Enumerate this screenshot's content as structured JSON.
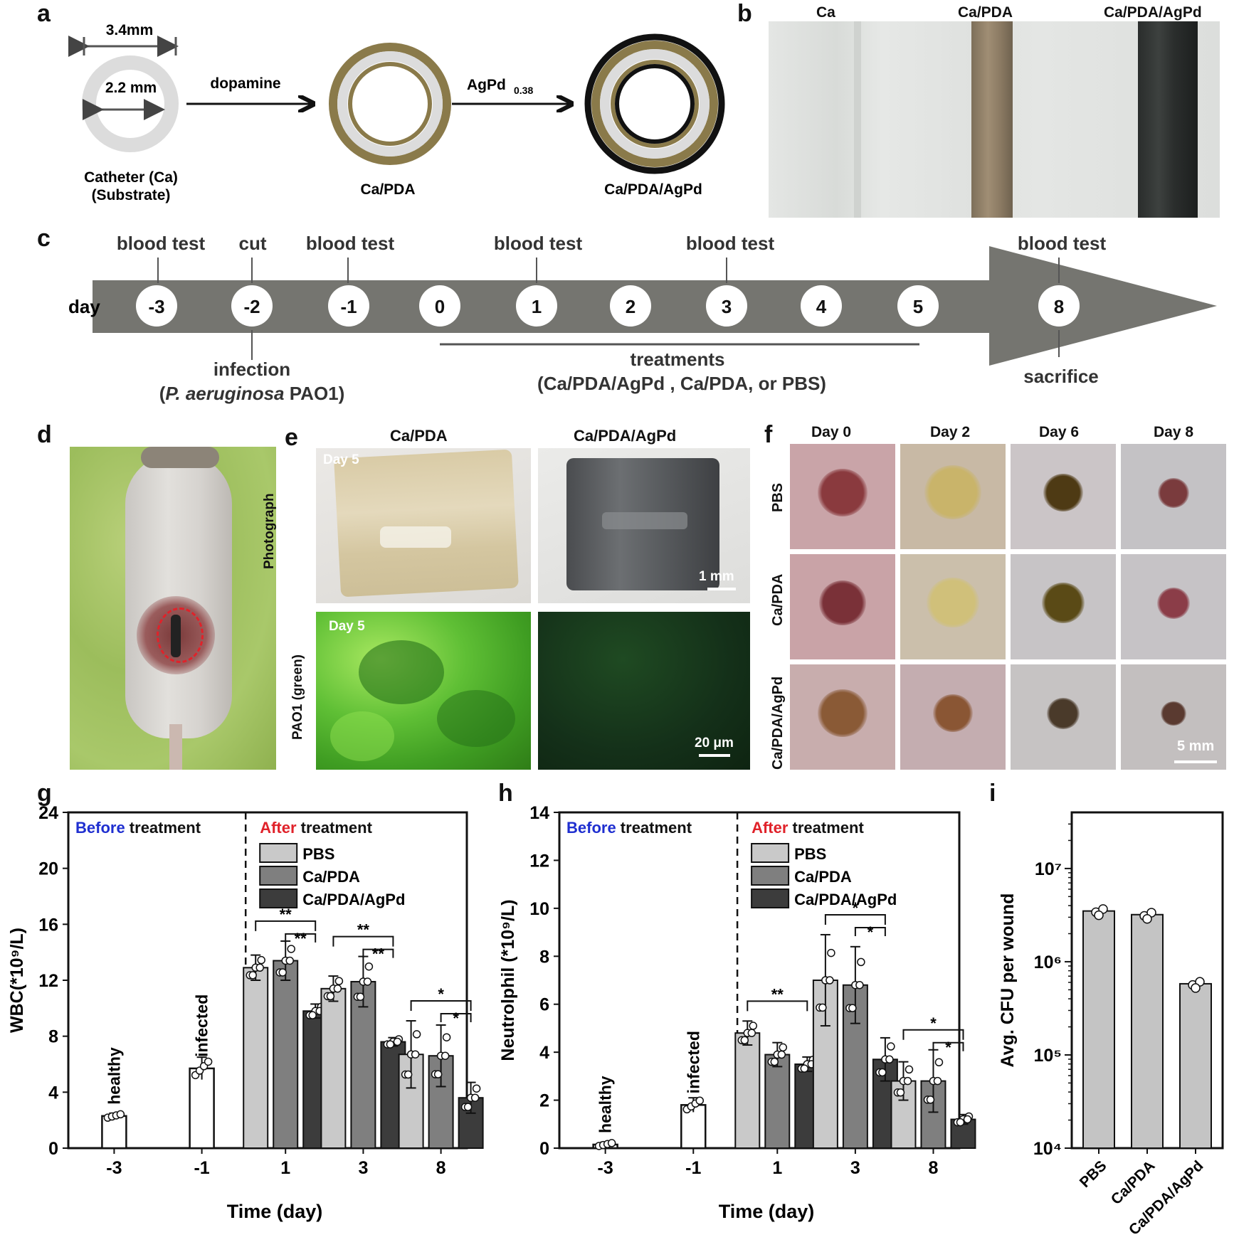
{
  "panels": {
    "a": "a",
    "b": "b",
    "c": "c",
    "d": "d",
    "e": "e",
    "f": "f",
    "g": "g",
    "h": "h",
    "i": "i"
  },
  "panel_a": {
    "outer_dim": "3.4mm",
    "inner_dim": "2.2 mm",
    "step1": "dopamine",
    "step2": "AgPd",
    "step2_sub": "0.38",
    "label_ca_1": "Catheter (Ca)",
    "label_ca_2": "(Substrate)",
    "label_cpda": "Ca/PDA",
    "label_cagpd": "Ca/PDA/AgPd",
    "colors": {
      "substrate": "#d9d9d9",
      "pda": "#8a7a4a",
      "agpd": "#111111"
    }
  },
  "panel_b": {
    "labels": [
      "Ca",
      "Ca/PDA",
      "Ca/PDA/AgPd"
    ]
  },
  "panel_c": {
    "day_label": "day",
    "days": [
      "-3",
      "-2",
      "-1",
      "0",
      "1",
      "2",
      "3",
      "4",
      "5",
      "8"
    ],
    "top_labels": [
      "blood test",
      "cut",
      "blood test",
      "blood test",
      "blood test",
      "blood test"
    ],
    "infection_1": "infection",
    "infection_2a": "(",
    "infection_2b": "P. aeruginosa",
    "infection_2c": " PAO1)",
    "treatments_1": "treatments",
    "treatments_2": "(Ca/PDA/AgPd , Ca/PDA, or PBS)",
    "sacrifice": "sacrifice"
  },
  "panel_e": {
    "col1": "Ca/PDA",
    "col2": "Ca/PDA/AgPd",
    "row1": "Photograph",
    "row2": "PAO1 (green)",
    "day_tag": "Day 5",
    "scale1": "1 mm",
    "scale2": "20 μm"
  },
  "panel_f": {
    "cols": [
      "Day 0",
      "Day 2",
      "Day 6",
      "Day 8"
    ],
    "rows": [
      "PBS",
      "Ca/PDA",
      "Ca/PDA/AgPd"
    ],
    "scale": "5 mm"
  },
  "chart_data": [
    {
      "type": "bar",
      "panel": "g",
      "ylabel": "WBC(*10⁹/L)",
      "xlabel": "Time (day)",
      "ylim": [
        0,
        24
      ],
      "yticks": [
        0,
        4,
        8,
        12,
        16,
        20,
        24
      ],
      "before_label": [
        "Before",
        " treatment"
      ],
      "after_label": [
        "After",
        " treatment"
      ],
      "legend": [
        "PBS",
        "Ca/PDA",
        "Ca/PDA/AgPd"
      ],
      "groups_before": [
        {
          "x": "-3",
          "label": "healthy",
          "value": 2.3,
          "err": 0.2
        },
        {
          "x": "-1",
          "label": "infected",
          "value": 5.7,
          "err": 0.8
        }
      ],
      "groups_after": [
        {
          "x": "1",
          "values": [
            12.9,
            13.4,
            9.8
          ],
          "errs": [
            0.9,
            1.4,
            0.5
          ],
          "sig": [
            "**",
            "**"
          ]
        },
        {
          "x": "3",
          "values": [
            11.4,
            11.9,
            7.6
          ],
          "errs": [
            0.9,
            1.8,
            0.3
          ],
          "sig": [
            "**",
            "**"
          ]
        },
        {
          "x": "8",
          "values": [
            6.7,
            6.6,
            3.6
          ],
          "errs": [
            2.4,
            2.2,
            1.1
          ],
          "sig": [
            "*",
            "*"
          ]
        }
      ]
    },
    {
      "type": "bar",
      "panel": "h",
      "ylabel": "Neutrolphil (*10⁹/L)",
      "xlabel": "Time (day)",
      "ylim": [
        0,
        14
      ],
      "yticks": [
        0,
        2,
        4,
        6,
        8,
        10,
        12,
        14
      ],
      "before_label": [
        "Before",
        " treatment"
      ],
      "after_label": [
        "After",
        " treatment"
      ],
      "legend": [
        "PBS",
        "Ca/PDA",
        "Ca/PDA/AgPd"
      ],
      "groups_before": [
        {
          "x": "-3",
          "label": "healthy",
          "value": 0.15,
          "err": 0.1
        },
        {
          "x": "-1",
          "label": "infected",
          "value": 1.8,
          "err": 0.3
        }
      ],
      "groups_after": [
        {
          "x": "1",
          "values": [
            4.8,
            3.9,
            3.5
          ],
          "errs": [
            0.5,
            0.5,
            0.3
          ],
          "sig": [
            "**"
          ]
        },
        {
          "x": "3",
          "values": [
            7.0,
            6.8,
            3.7
          ],
          "errs": [
            1.9,
            1.6,
            0.9
          ],
          "sig": [
            "*",
            "*"
          ]
        },
        {
          "x": "8",
          "values": [
            2.8,
            2.8,
            1.2
          ],
          "errs": [
            0.8,
            1.3,
            0.2
          ],
          "sig": [
            "*",
            "*"
          ]
        }
      ]
    },
    {
      "type": "bar",
      "panel": "i",
      "ylabel": "Avg. CFU per wound",
      "scale": "log",
      "ylim": [
        10000,
        40000000
      ],
      "yticks": [
        "10⁴",
        "10⁵",
        "10⁶",
        "10⁷"
      ],
      "categories": [
        "PBS",
        "Ca/PDA",
        "Ca/PDA/AgPd"
      ],
      "values": [
        3500000,
        3200000,
        580000
      ]
    }
  ]
}
